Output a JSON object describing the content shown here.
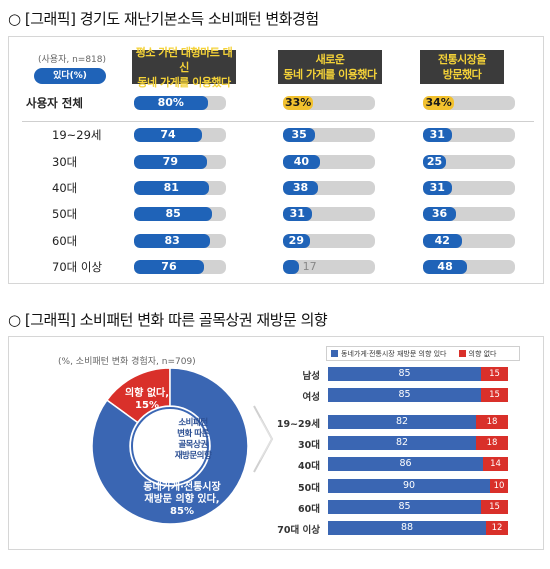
{
  "section1": {
    "title": "○ [그래픽] 경기도 재난기본소득 소비패턴 변화경험",
    "note": "(사용자, n=818)",
    "badge": "있다(%)",
    "headers": [
      "평소 가던 대형마트 대신\n동네 가게를 이용했다",
      "새로운\n동네 가게를 이용했다",
      "전통시장을\n방문했다"
    ],
    "colors": {
      "blue": "#1f63b8",
      "gold": "#f2c12e",
      "track": "#d2d2d2",
      "header_bg": "#3b3b3b",
      "header_text": "#f4d238"
    },
    "rows": [
      {
        "label": "사용자 전체",
        "values": [
          "80%",
          "33%",
          "34%"
        ]
      },
      {
        "label": "19~29세",
        "values": [
          "74",
          "35",
          "31"
        ]
      },
      {
        "label": "30대",
        "values": [
          "79",
          "40",
          "25"
        ]
      },
      {
        "label": "40대",
        "values": [
          "81",
          "38",
          "31"
        ]
      },
      {
        "label": "50대",
        "values": [
          "85",
          "31",
          "36"
        ]
      },
      {
        "label": "60대",
        "values": [
          "83",
          "29",
          "42"
        ]
      },
      {
        "label": "70대 이상",
        "values": [
          "76",
          "17",
          "48"
        ]
      }
    ]
  },
  "section2": {
    "title": "○ [그래픽] 소비패턴 변화 따른 골목상권 재방문 의향",
    "note": "(%, 소비패턴 변화 경험자, n=709)",
    "donut": {
      "center_label": "소비패턴\n변화 따른\n골목상권\n재방문의향",
      "no_label": "의향 없다,\n15%",
      "yes_label": "동네가게·전통시장\n재방문 의향 있다,\n85%"
    },
    "legend": [
      "동네가게·전통시장 재방문 의향 있다",
      "의향 없다"
    ],
    "colors": {
      "yes": "#3a66b3",
      "no": "#d9302a"
    },
    "rows": [
      {
        "label": "남성",
        "yes": "85",
        "no": "15"
      },
      {
        "label": "여성",
        "yes": "85",
        "no": "15"
      },
      {
        "label": "19~29세",
        "yes": "82",
        "no": "18"
      },
      {
        "label": "30대",
        "yes": "82",
        "no": "18"
      },
      {
        "label": "40대",
        "yes": "86",
        "no": "14"
      },
      {
        "label": "50대",
        "yes": "90",
        "no": "10"
      },
      {
        "label": "60대",
        "yes": "85",
        "no": "15"
      },
      {
        "label": "70대 이상",
        "yes": "88",
        "no": "12"
      }
    ]
  },
  "chart_data": [
    {
      "type": "bar",
      "categories": [
        "사용자 전체",
        "19~29세",
        "30대",
        "40대",
        "50대",
        "60대",
        "70대 이상"
      ],
      "series": [
        {
          "name": "평소 가던 대형마트 대신 동네 가게를 이용했다",
          "values": [
            80,
            74,
            79,
            81,
            85,
            83,
            76
          ]
        },
        {
          "name": "새로운 동네 가게를 이용했다",
          "values": [
            33,
            35,
            40,
            38,
            31,
            29,
            17
          ]
        },
        {
          "name": "전통시장을 방문했다",
          "values": [
            34,
            31,
            25,
            31,
            36,
            42,
            48
          ]
        }
      ],
      "ylim": [
        0,
        100
      ]
    },
    {
      "type": "pie",
      "categories": [
        "동네가게·전통시장 재방문 의향 있다",
        "의향 없다"
      ],
      "values": [
        85,
        15
      ]
    },
    {
      "type": "bar",
      "categories": [
        "남성",
        "여성",
        "19~29세",
        "30대",
        "40대",
        "50대",
        "60대",
        "70대 이상"
      ],
      "series": [
        {
          "name": "동네가게·전통시장 재방문 의향 있다",
          "values": [
            85,
            85,
            82,
            82,
            86,
            90,
            85,
            88
          ]
        },
        {
          "name": "의향 없다",
          "values": [
            15,
            15,
            18,
            18,
            14,
            10,
            15,
            12
          ]
        }
      ],
      "stacked": true,
      "ylim": [
        0,
        100
      ]
    }
  ]
}
